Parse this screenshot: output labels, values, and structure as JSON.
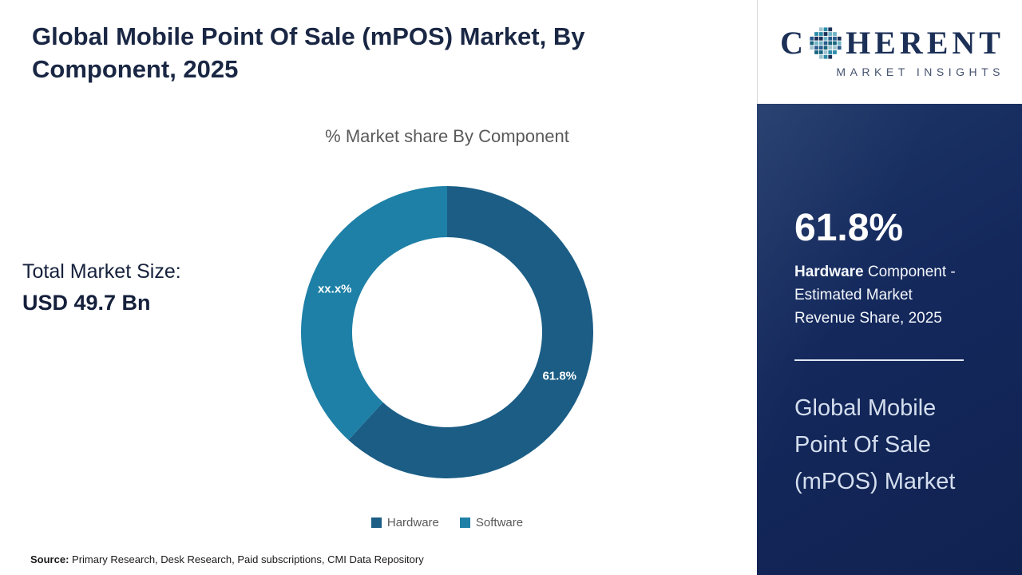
{
  "header": {
    "title": "Global Mobile Point Of Sale (mPOS) Market, By Component, 2025"
  },
  "chart": {
    "subtitle": "% Market share By Component"
  },
  "market_size": {
    "label": "Total Market Size:",
    "value": "USD 49.7 Bn"
  },
  "chart_data": {
    "type": "pie",
    "donut": true,
    "title": "% Market share By Component",
    "categories": [
      "Hardware",
      "Software"
    ],
    "values": [
      61.8,
      38.2
    ],
    "slice_labels": [
      "61.8%",
      "xx.x%"
    ],
    "colors": [
      "#1b5d85",
      "#1e80a6"
    ],
    "legend_position": "bottom",
    "start_angle_deg": 0,
    "direction": "clockwise",
    "annotations": [
      "Hardware share labeled 61.8%; Software share masked as xx.x%"
    ]
  },
  "sidebar": {
    "logo": {
      "brand_prefix": "C",
      "brand_suffix": "HERENT",
      "icon": "mosaic-globe-icon",
      "tagline": "MARKET INSIGHTS"
    },
    "stat_value": "61.8%",
    "stat_label_bold": "Hardware",
    "stat_label_rest": " Component - Estimated Market Revenue Share, 2025",
    "panel_title": "Global Mobile Point Of Sale (mPOS) Market"
  },
  "footer": {
    "source_label": "Source:",
    "source_text": " Primary Research, Desk Research, Paid subscriptions, CMI Data Repository"
  }
}
